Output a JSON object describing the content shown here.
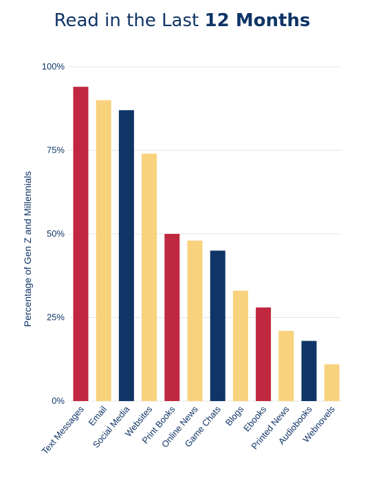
{
  "chart_data": {
    "type": "bar",
    "title_regular": "Read in the Last ",
    "title_bold": "12 Months",
    "xlabel": "",
    "ylabel": "Percentage of Gen Z and Millennials",
    "ylim": [
      0,
      100
    ],
    "yticks": [
      0,
      25,
      50,
      75,
      100
    ],
    "ytick_labels": [
      "0%",
      "25%",
      "50%",
      "75%",
      "100%"
    ],
    "grid": true,
    "categories": [
      "Text Messages",
      "Email",
      "Social Media",
      "Websites",
      "Print Books",
      "Online News",
      "Game Chats",
      "Blogs",
      "Ebooks",
      "Printed News",
      "Audiobooks",
      "Webnovels"
    ],
    "values": [
      94,
      90,
      87,
      74,
      50,
      48,
      45,
      33,
      28,
      21,
      18,
      11
    ],
    "colors": [
      "#c0283f",
      "#f8d27c",
      "#0f3466",
      "#f8d27c",
      "#c0283f",
      "#f8d27c",
      "#0f3466",
      "#f8d27c",
      "#c0283f",
      "#f8d27c",
      "#0f3466",
      "#f8d27c"
    ]
  }
}
